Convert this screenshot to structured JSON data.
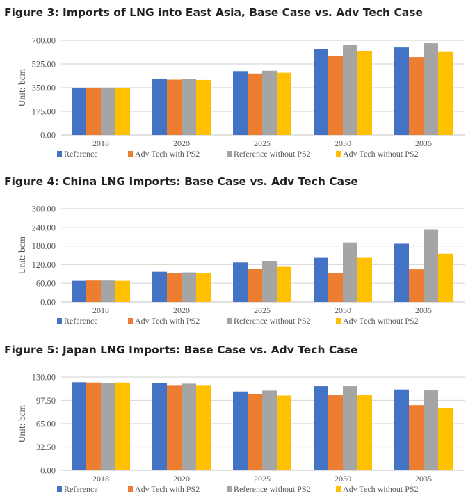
{
  "chart_data": [
    {
      "type": "bar",
      "title": "Figure 3: Imports of LNG into East Asia, Base Case vs. Adv Tech Case",
      "xlabel": "",
      "ylabel": "Unit: bcm",
      "ylim": [
        0,
        700
      ],
      "yticks": [
        "0.00",
        "175.00",
        "350.00",
        "525.00",
        "700.00"
      ],
      "ytick_values": [
        0,
        175,
        350,
        525,
        700
      ],
      "grid": true,
      "legend_position": "bottom",
      "categories": [
        "2018",
        "2020",
        "2025",
        "2030",
        "2035"
      ],
      "series": [
        {
          "name": "Reference",
          "color": "#4472C4",
          "values": [
            350,
            417,
            472,
            633,
            648
          ]
        },
        {
          "name": "Adv Tech with PS2",
          "color": "#ED7D31",
          "values": [
            350,
            409,
            454,
            585,
            576
          ]
        },
        {
          "name": "Reference without PS2",
          "color": "#A5A5A5",
          "values": [
            350,
            412,
            475,
            669,
            679
          ]
        },
        {
          "name": "Adv Tech without PS2",
          "color": "#FFC000",
          "values": [
            350,
            407,
            460,
            621,
            614
          ]
        }
      ]
    },
    {
      "type": "bar",
      "title": "Figure 4: China LNG Imports: Base Case vs. Adv Tech Case",
      "xlabel": "",
      "ylabel": "Unit: bcm",
      "ylim": [
        0,
        300
      ],
      "yticks": [
        "0.00",
        "60.00",
        "120.00",
        "180.00",
        "240.00",
        "300.00"
      ],
      "ytick_values": [
        0,
        60,
        120,
        180,
        240,
        300
      ],
      "grid": true,
      "legend_position": "bottom",
      "categories": [
        "2018",
        "2020",
        "2025",
        "2030",
        "2035"
      ],
      "series": [
        {
          "name": "Reference",
          "color": "#4472C4",
          "values": [
            68,
            97,
            127,
            142,
            187
          ]
        },
        {
          "name": "Adv Tech with PS2",
          "color": "#ED7D31",
          "values": [
            69,
            93,
            106,
            92,
            105
          ]
        },
        {
          "name": "Reference without PS2",
          "color": "#A5A5A5",
          "values": [
            69,
            95,
            132,
            191,
            234
          ]
        },
        {
          "name": "Adv Tech without PS2",
          "color": "#FFC000",
          "values": [
            68,
            92,
            113,
            142,
            155
          ]
        }
      ]
    },
    {
      "type": "bar",
      "title": "Figure 5: Japan LNG Imports: Base Case vs. Adv Tech Case",
      "xlabel": "",
      "ylabel": "Unit: bcm",
      "ylim": [
        0,
        130
      ],
      "yticks": [
        "0.00",
        "32.50",
        "65.00",
        "97.50",
        "130.00"
      ],
      "ytick_values": [
        0,
        32.5,
        65,
        97.5,
        130
      ],
      "grid": true,
      "legend_position": "bottom",
      "categories": [
        "2018",
        "2020",
        "2025",
        "2030",
        "2035"
      ],
      "series": [
        {
          "name": "Reference",
          "color": "#4472C4",
          "values": [
            122.9,
            122.2,
            109.9,
            117.3,
            112.8
          ]
        },
        {
          "name": "Adv Tech with PS2",
          "color": "#ED7D31",
          "values": [
            122.5,
            118.0,
            106.0,
            104.7,
            91.0
          ]
        },
        {
          "name": "Reference without PS2",
          "color": "#A5A5A5",
          "values": [
            121.9,
            120.9,
            111.2,
            117.3,
            111.8
          ]
        },
        {
          "name": "Adv Tech without PS2",
          "color": "#FFC000",
          "values": [
            122.5,
            118.0,
            104.3,
            104.7,
            86.8
          ]
        }
      ]
    }
  ]
}
